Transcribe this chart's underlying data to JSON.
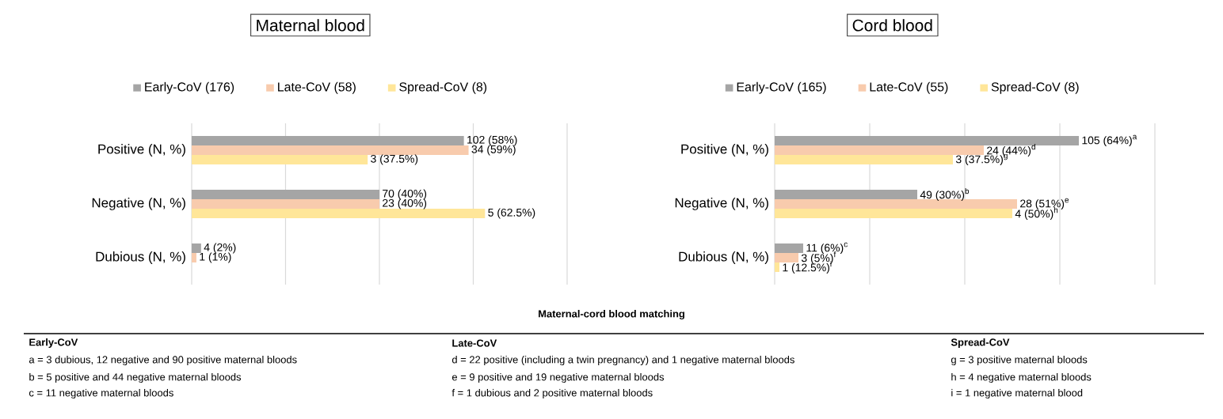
{
  "chart_data": [
    {
      "type": "bar",
      "orientation": "horizontal",
      "title": "Maternal blood",
      "categories": [
        "Positive (N, %)",
        "Negative (N, %)",
        "Dubious (N, %)"
      ],
      "series": [
        {
          "name": "Early-CoV (176)",
          "color": "#a5a5a5",
          "values": [
            58,
            40,
            2
          ],
          "value_labels": [
            "102 (58%)",
            "70 (40%)",
            "4 (2%)"
          ]
        },
        {
          "name": "Late-CoV (58)",
          "color": "#f8cbad",
          "values": [
            59,
            40,
            1
          ],
          "value_labels": [
            "34 (59%)",
            "23 (40%)",
            "1 (1%)"
          ]
        },
        {
          "name": "Spread-CoV (8)",
          "color": "#ffe699",
          "values": [
            37.5,
            62.5,
            null
          ],
          "value_labels": [
            "3 (37.5%)",
            "5 (62.5%)",
            null
          ]
        }
      ],
      "xlim": [
        0,
        80
      ],
      "xticks": [
        {
          "value": 0,
          "label": null
        },
        {
          "value": 20,
          "label": null
        },
        {
          "value": 40,
          "label": null
        },
        {
          "value": 60,
          "label": null
        },
        {
          "value": 80,
          "label": null
        }
      ],
      "grid": "x",
      "legend": "top",
      "tick_labels": "y"
    },
    {
      "type": "bar",
      "orientation": "horizontal",
      "title": "Cord blood",
      "categories": [
        "Positive (N, %)",
        "Negative (N, %)",
        "Dubious (N, %)"
      ],
      "series": [
        {
          "name": "Early-CoV (165)",
          "color": "#a5a5a5",
          "values": [
            64,
            30,
            6
          ],
          "value_labels": [
            "105 (64%)$^{a}$",
            "49 (30%)$^{b}$",
            "11 (6%)$^{c}$"
          ]
        },
        {
          "name": "Late-CoV (55)",
          "color": "#f8cbad",
          "values": [
            44,
            51,
            5
          ],
          "value_labels": [
            "24 (44%)$^{d}$",
            "28 (51%)$^{e}$",
            "3 (5%)$^{f}$"
          ]
        },
        {
          "name": "Spread-CoV (8)",
          "color": "#ffe699",
          "values": [
            37.5,
            50,
            1
          ],
          "value_labels": [
            "3 (37.5%)$^{g}$",
            "4 (50%)$^{h}$",
            "1 (12.5%)$^{i}$"
          ]
        }
      ],
      "xlim": [
        0,
        80
      ],
      "xticks": [
        {
          "value": 0,
          "label": null
        },
        {
          "value": 20,
          "label": null
        },
        {
          "value": 40,
          "label": null
        },
        {
          "value": 60,
          "label": null
        },
        {
          "value": 80,
          "label": null
        }
      ],
      "grid": "x",
      "legend": "top",
      "tick_labels": "y"
    },
    {
      "type": "other",
      "title": "Maternal-cord blood matching",
      "annotations": [
        "Early-CoV",
        "a = 3 dubious, 12 negative and 90 positive maternal bloods",
        "b = 5 positive and 44 negative maternal bloods",
        "c = 11 negative maternal bloods",
        "Late-CoV",
        "d = 22 positive (including a twin pregnancy) and 1 negative maternal bloods",
        "e = 9 positive and 19 negative maternal bloods",
        "f =  1 dubious and 2 positive maternal bloods",
        "Spread-CoV",
        "g = 3 positive maternal bloods",
        "h = 4 negative maternal bloods",
        "i = 1 negative maternal blood"
      ]
    }
  ]
}
